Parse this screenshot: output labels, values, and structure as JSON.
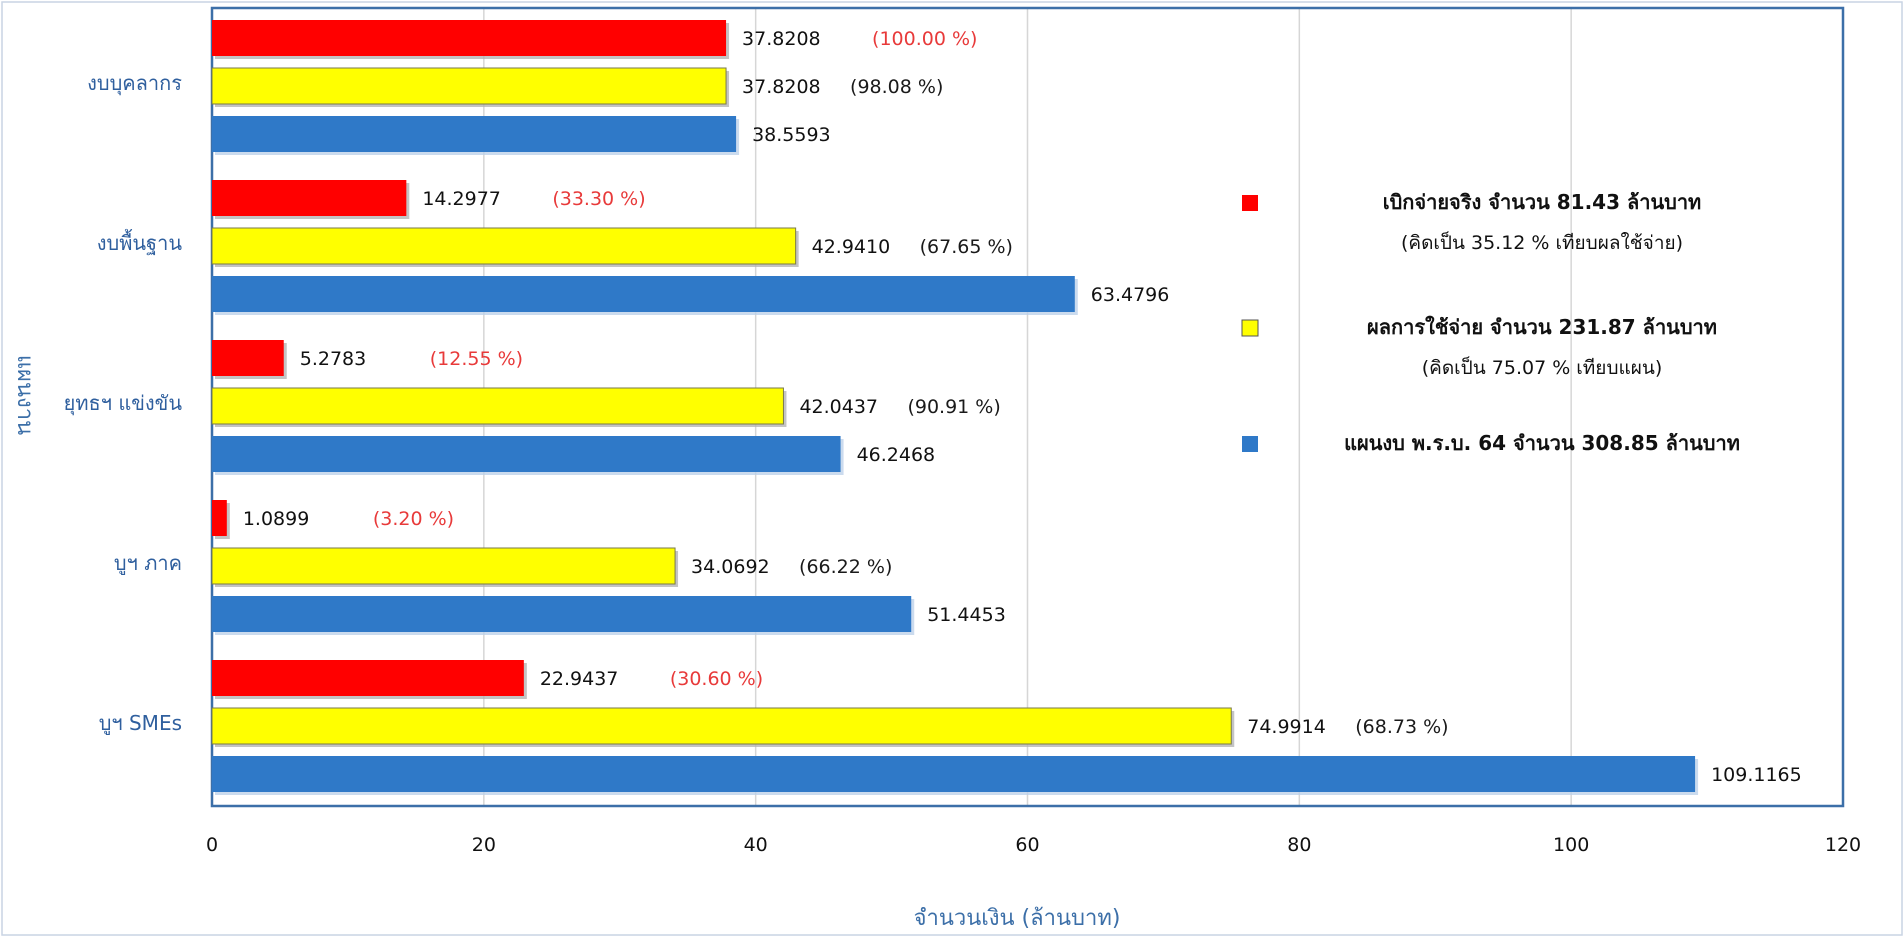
{
  "chart_data": {
    "type": "bar",
    "orientation": "horizontal",
    "xlabel": "จำนวนเงิน (ล้านบาท)",
    "ylabel": "แผนงาน",
    "xlim": [
      0,
      120
    ],
    "x_ticks": [
      "0",
      "20",
      "40",
      "60",
      "80",
      "100",
      "120"
    ],
    "grid": true,
    "legend_position": "right",
    "categories": [
      "งบบุคลากร",
      "งบพื้นฐาน",
      "ยุทธฯ แข่งขัน",
      "บูฯ ภาค",
      "บูฯ SMEs"
    ],
    "series": [
      {
        "key": "actual",
        "color": "#ff0000",
        "values": [
          37.8208,
          14.2977,
          5.2783,
          1.0899,
          22.9437
        ],
        "value_labels": [
          "37.8208",
          "14.2977",
          "5.2783",
          "1.0899",
          "22.9437"
        ],
        "percent_labels": [
          "(100.00 %)",
          "(33.30 %)",
          "(12.55 %)",
          "(3.20 %)",
          "(30.60 %)"
        ],
        "percent_color": "#e83a3a"
      },
      {
        "key": "spending",
        "color": "#ffff00",
        "values": [
          37.8208,
          42.941,
          42.0437,
          34.0692,
          74.9914
        ],
        "value_labels": [
          "37.8208",
          "42.9410",
          "42.0437",
          "34.0692",
          "74.9914"
        ],
        "percent_labels": [
          "(98.08 %)",
          "(67.65 %)",
          "(90.91 %)",
          "(66.22 %)",
          "(68.73 %)"
        ],
        "percent_color": "#1a1a1a"
      },
      {
        "key": "plan",
        "color": "#2f79c8",
        "values": [
          38.5593,
          63.4796,
          46.2468,
          51.4453,
          109.1165
        ],
        "value_labels": [
          "38.5593",
          "63.4796",
          "46.2468",
          "51.4453",
          "109.1165"
        ],
        "percent_labels": [
          "",
          "",
          "",
          "",
          ""
        ],
        "percent_color": "#1a1a1a"
      }
    ],
    "legend": [
      {
        "series": "actual",
        "line1": "เบิกจ่ายจริง จำนวน  81.43 ล้านบาท",
        "line2": "(คิดเป็น 35.12 % เทียบผลใช้จ่าย)"
      },
      {
        "series": "spending",
        "line1": "ผลการใช้จ่าย จำนวน 231.87 ล้านบาท",
        "line2": "(คิดเป็น 75.07 % เทียบแผน)"
      },
      {
        "series": "plan",
        "line1": "แผนงบ พ.ร.บ. 64 จำนวน 308.85 ล้านบาท",
        "line2": ""
      }
    ]
  }
}
